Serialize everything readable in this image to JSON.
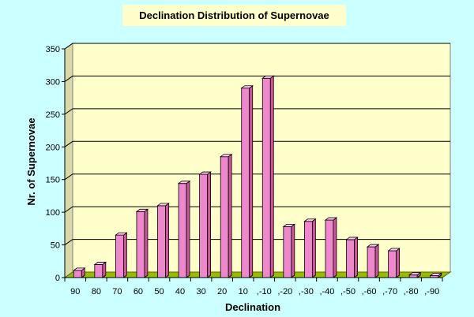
{
  "chart_data": {
    "type": "bar",
    "title": "Declination Distribution of Supernovae",
    "xlabel": "Declination",
    "ylabel": "Nr. of Supernovae",
    "categories": [
      "90",
      "80",
      "70",
      "60",
      "50",
      "40",
      "30",
      "20",
      "10",
      "-10",
      "-20",
      "-30",
      "-40",
      "-50",
      "-60",
      "-70",
      "-80",
      "-90"
    ],
    "tick_labels": [
      "90",
      "80",
      "70",
      "60",
      "50",
      "40",
      "30",
      "20",
      "10",
      ",-10",
      ",-20",
      ",-30",
      ",-40",
      ",-50",
      ",-60",
      ",-70",
      ",-80",
      ",-90"
    ],
    "values": [
      11,
      20,
      65,
      101,
      110,
      144,
      158,
      185,
      290,
      305,
      78,
      86,
      88,
      58,
      47,
      41,
      4,
      3
    ],
    "ylim": [
      0,
      350
    ],
    "yticks": [
      0,
      50,
      100,
      150,
      200,
      250,
      300,
      350
    ],
    "grid": true,
    "legend": "none",
    "colors": {
      "background": "#ccffff",
      "plot_area": "#ffffcc",
      "bar_front": "#ee88cc",
      "bar_side": "#cc5599",
      "bar_top": "#ffccee",
      "floor": "#99bb00"
    }
  }
}
